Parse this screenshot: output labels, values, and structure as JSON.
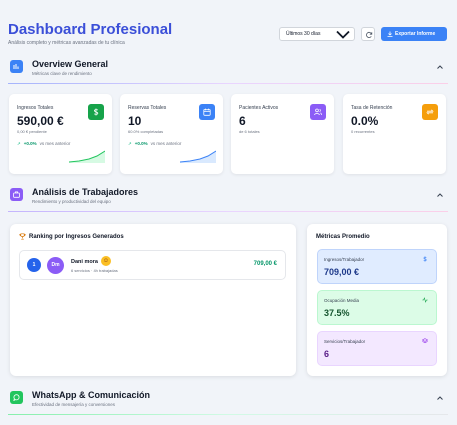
{
  "header": {
    "title": "Dashboard Profesional",
    "subtitle": "Análisis completo y métricas avanzadas de tu clínica",
    "period_value": "Últimos 30 días",
    "export_label": "Exportar Informe"
  },
  "overview": {
    "title": "Overview General",
    "subtitle": "Métricas clave de rendimiento",
    "cards": [
      {
        "label": "Ingresos Totales",
        "value": "590,00 €",
        "note": "0,00 € pendiente",
        "change": "+0.0%",
        "vs": "vs mes anterior",
        "icon": "dollar-icon",
        "color": "#16a34a",
        "spark": "#22c55e"
      },
      {
        "label": "Reservas Totales",
        "value": "10",
        "note": "60.0% completadas",
        "change": "+0.0%",
        "vs": "vs mes anterior",
        "icon": "calendar-icon",
        "color": "#3b82f6",
        "spark": "#3b82f6"
      },
      {
        "label": "Pacientes Activos",
        "value": "6",
        "note": "de 6 totales",
        "icon": "users-icon",
        "color": "#8b5cf6"
      },
      {
        "label": "Tasa de Retención",
        "value": "0.0%",
        "note": "0 recurrentes",
        "icon": "repeat-icon",
        "color": "#f59e0b"
      }
    ]
  },
  "workers": {
    "title": "Análisis de Trabajadores",
    "subtitle": "Rendimiento y productividad del equipo",
    "ranking_title": "Ranking por Ingresos Generados",
    "ranking": [
      {
        "position": "1",
        "initials": "Dm",
        "name": "Dani mora",
        "medal": "☺",
        "sub": "6 servicios · 4h trabajadas",
        "amount": "709,00 €"
      }
    ],
    "metrics_title": "Métricas Promedio",
    "metrics": [
      {
        "label": "Ingresos/Trabajador",
        "value": "709,00 €",
        "icon": "dollar-icon",
        "bg": "#e0ecff",
        "border": "#bfd4fb",
        "fg": "#1e3a8a",
        "ico": "#3b82f6"
      },
      {
        "label": "Ocupación Media",
        "value": "37.5%",
        "icon": "activity-icon",
        "bg": "#dcfce7",
        "border": "#bbf7d0",
        "fg": "#14532d",
        "ico": "#16a34a"
      },
      {
        "label": "Servicios/Trabajador",
        "value": "6",
        "icon": "layers-icon",
        "bg": "#f3e8ff",
        "border": "#e9d5ff",
        "fg": "#581c87",
        "ico": "#9333ea"
      }
    ]
  },
  "whatsapp": {
    "title": "WhatsApp & Comunicación",
    "subtitle": "Efectividad de mensajería y conversiones"
  }
}
